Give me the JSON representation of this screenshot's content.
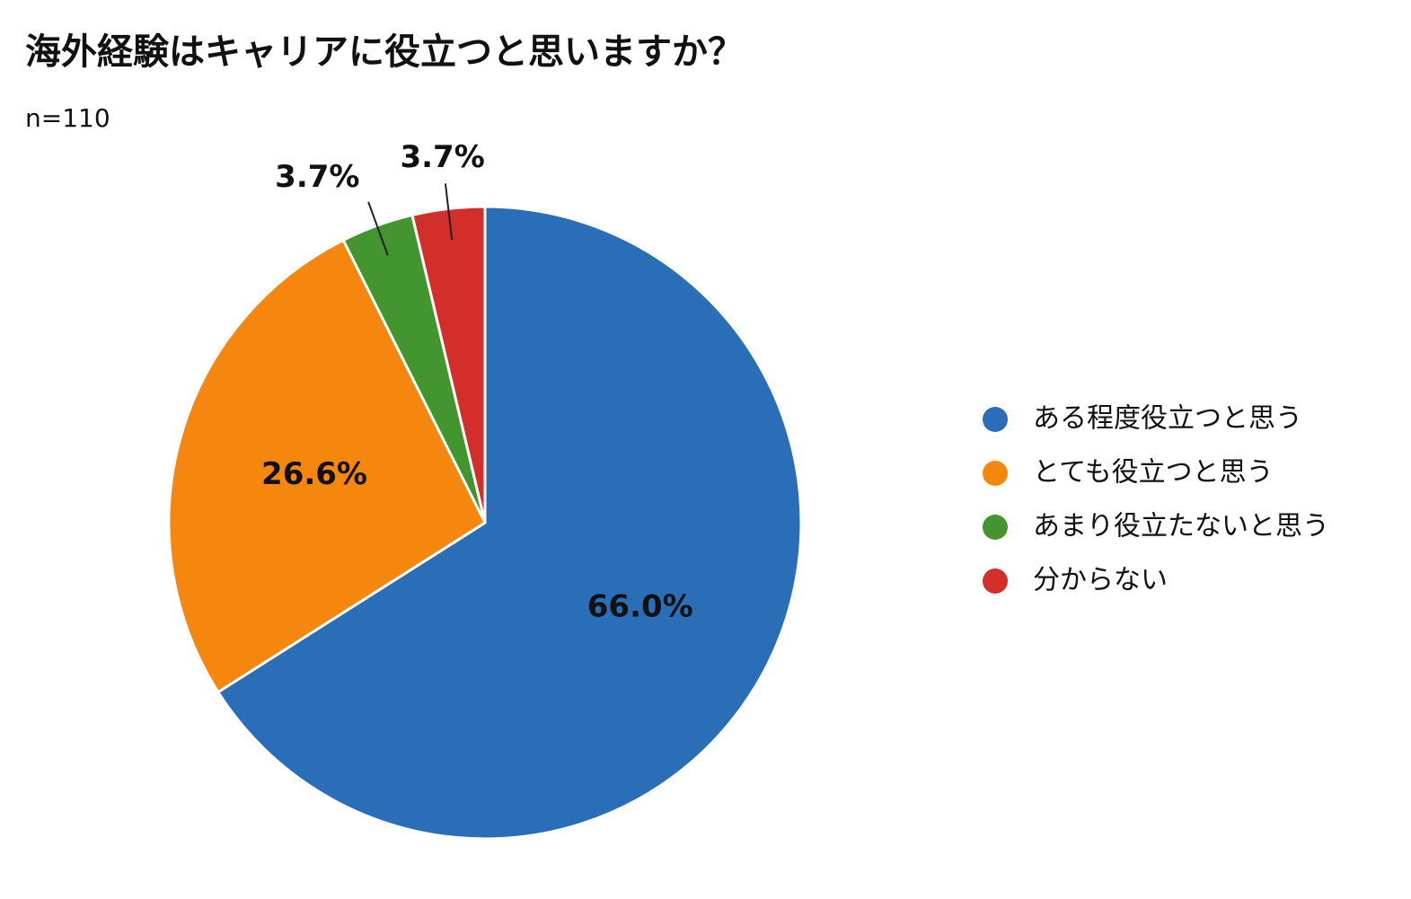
{
  "chart_data": {
    "type": "pie",
    "title": "海外経験はキャリアに役立つと思いますか？",
    "subtitle": "n=110",
    "categories": [
      "ある程度役立つと思う",
      "とても役立つと思う",
      "あまり役立たないと思う",
      "分からない"
    ],
    "values": [
      66.0,
      26.6,
      3.7,
      3.7
    ],
    "value_labels": [
      "66.0%",
      "26.6%",
      "3.7%",
      "3.7%"
    ],
    "colors": [
      "#2b6eb8",
      "#f5870f",
      "#43952f",
      "#d22f2b"
    ],
    "legend": "right"
  }
}
